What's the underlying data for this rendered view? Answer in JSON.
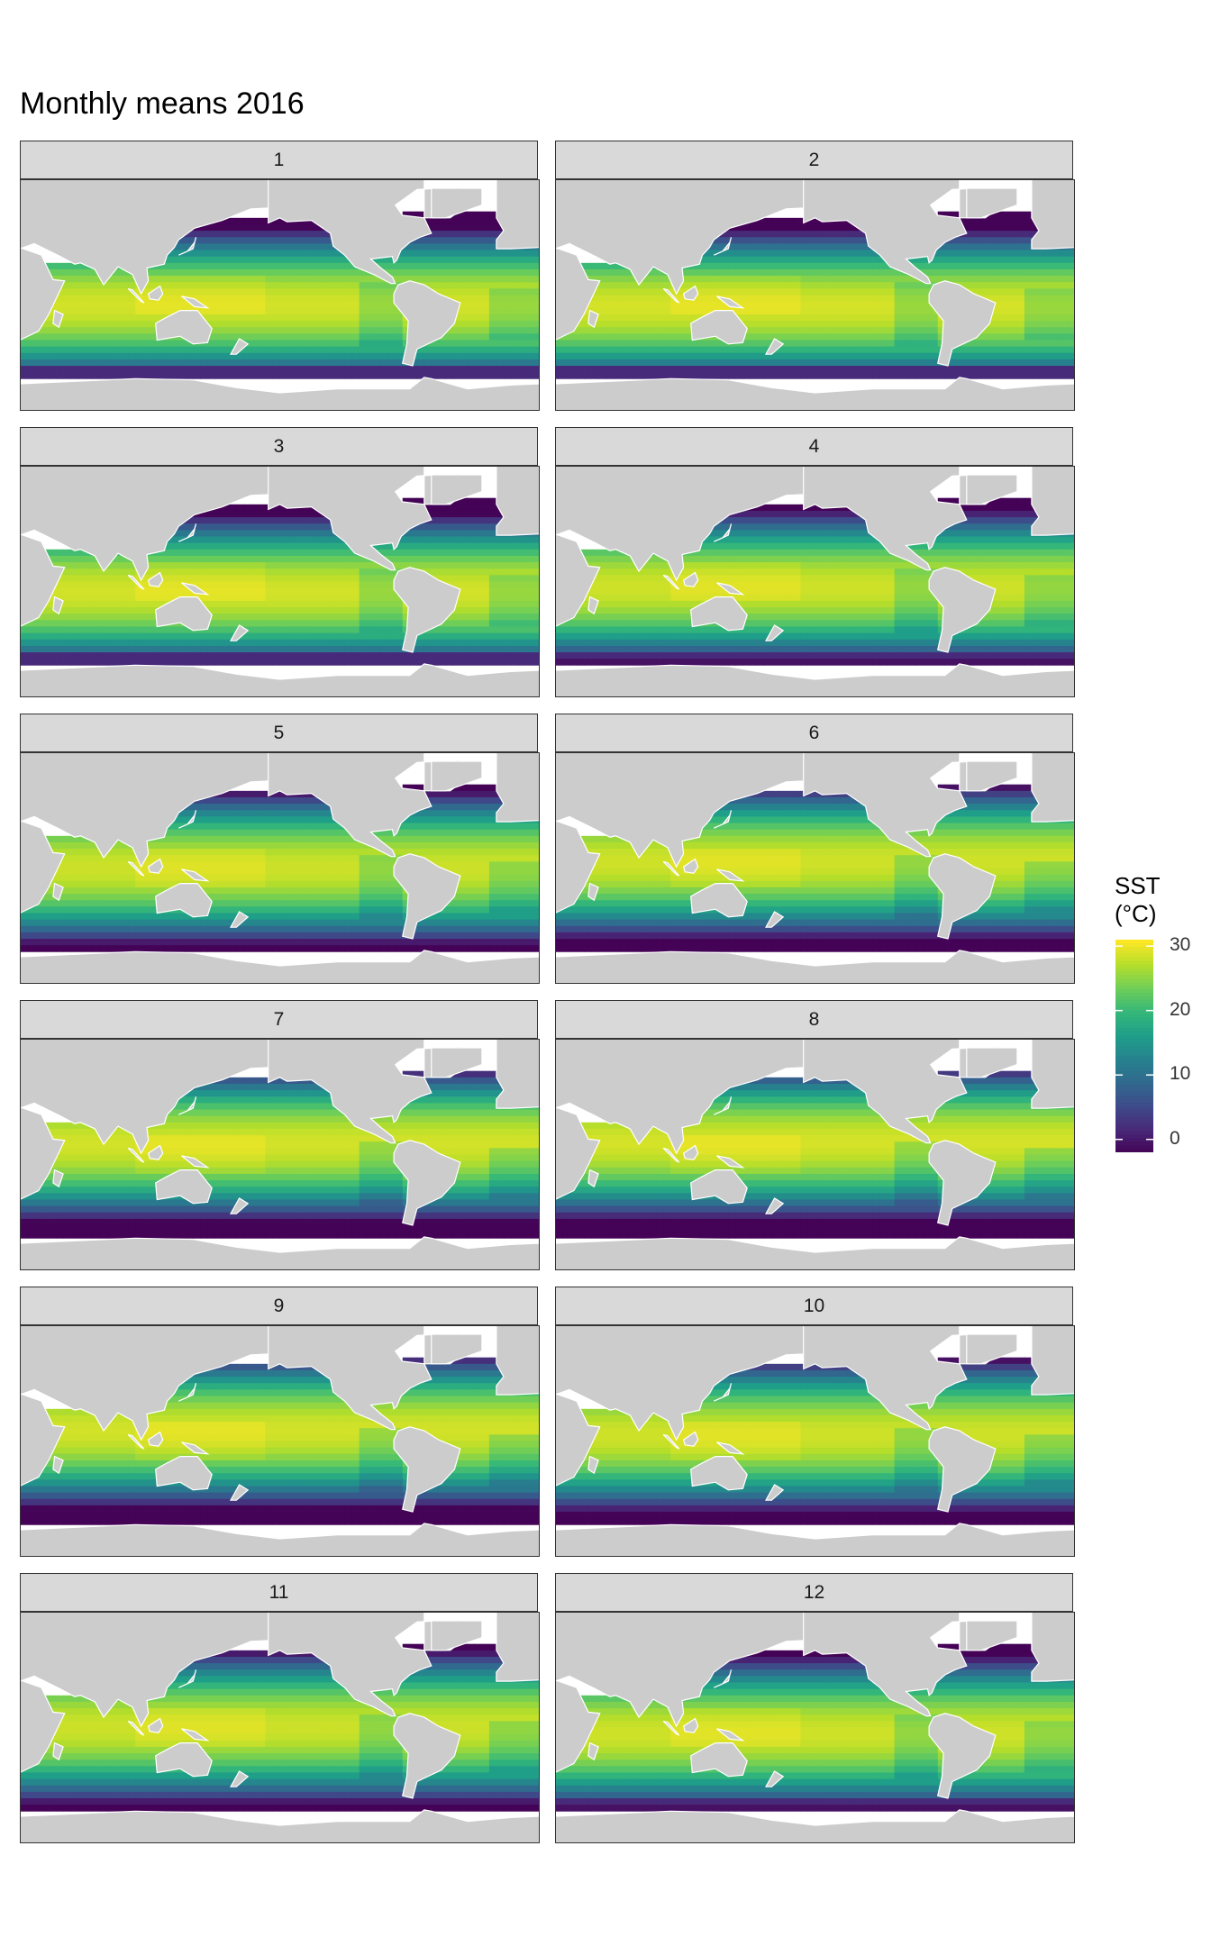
{
  "title": "Monthly means 2016",
  "legend": {
    "title": "SST\n(°C)",
    "ticks": [
      0,
      10,
      20,
      30
    ],
    "tick_labels": [
      "0",
      "10",
      "20",
      "30"
    ],
    "limits": [
      -2,
      31
    ],
    "palette": "viridis"
  },
  "colors": {
    "land": "#cccccc",
    "missing": "#ffffff",
    "strip": "#d9d9d9",
    "viridis": [
      "#440154",
      "#482878",
      "#3e4a89",
      "#31688e",
      "#26828e",
      "#1f9e89",
      "#35b779",
      "#6ece58",
      "#b5de2b",
      "#fde725"
    ]
  },
  "chart_data": {
    "type": "heatmap",
    "title": "Monthly means 2016",
    "variable": "SST (°C)",
    "facets": [
      "1",
      "2",
      "3",
      "4",
      "5",
      "6",
      "7",
      "8",
      "9",
      "10",
      "11",
      "12"
    ],
    "x": "longitude",
    "y": "latitude",
    "color_range": [
      -2,
      31
    ],
    "color_ticks": [
      0,
      10,
      20,
      30
    ],
    "legend_position": "right"
  }
}
